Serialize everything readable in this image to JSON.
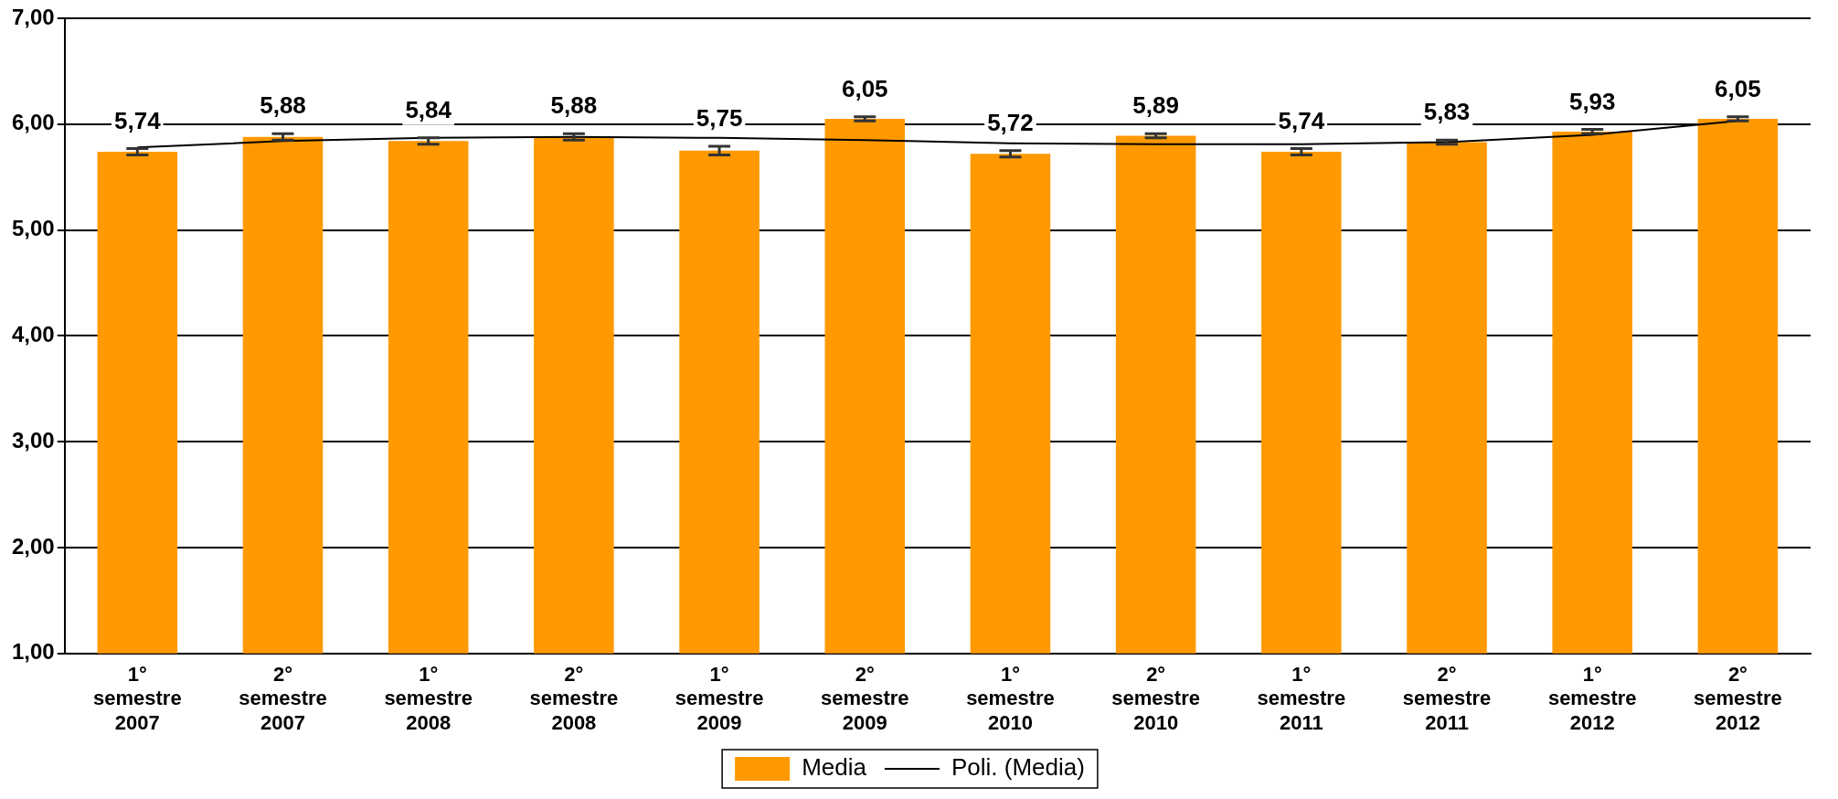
{
  "chart_data": {
    "type": "bar",
    "categories": [
      "1° semestre 2007",
      "2° semestre 2007",
      "1° semestre 2008",
      "2° semestre 2008",
      "1° semestre 2009",
      "2° semestre 2009",
      "1° semestre 2010",
      "2° semestre 2010",
      "1° semestre 2011",
      "2° semestre 2011",
      "1° semestre 2012",
      "2° semestre 2012"
    ],
    "series": [
      {
        "name": "Media",
        "color": "#ff9900",
        "values": [
          5.74,
          5.88,
          5.84,
          5.88,
          5.75,
          6.05,
          5.72,
          5.89,
          5.74,
          5.83,
          5.93,
          6.05
        ],
        "value_labels": [
          "5,74",
          "5,88",
          "5,84",
          "5,88",
          "5,75",
          "6,05",
          "5,72",
          "5,89",
          "5,74",
          "5,83",
          "5,93",
          "6,05"
        ],
        "errors": [
          0.03,
          0.03,
          0.03,
          0.03,
          0.04,
          0.02,
          0.03,
          0.02,
          0.03,
          0.02,
          0.02,
          0.02
        ]
      },
      {
        "name": "Poli. (Media)",
        "type": "line",
        "color": "#000000",
        "values": [
          5.78,
          5.84,
          5.87,
          5.88,
          5.87,
          5.85,
          5.82,
          5.81,
          5.81,
          5.83,
          5.9,
          6.03
        ]
      }
    ],
    "ylim": [
      1,
      7
    ],
    "yticks": [
      {
        "value": 1,
        "label": "1,00"
      },
      {
        "value": 2,
        "label": "2,00"
      },
      {
        "value": 3,
        "label": "3,00"
      },
      {
        "value": 4,
        "label": "4,00"
      },
      {
        "value": 5,
        "label": "5,00"
      },
      {
        "value": 6,
        "label": "6,00"
      },
      {
        "value": 7,
        "label": "7,00"
      }
    ],
    "grid": "y",
    "legend": "bottom",
    "marker": "none"
  }
}
